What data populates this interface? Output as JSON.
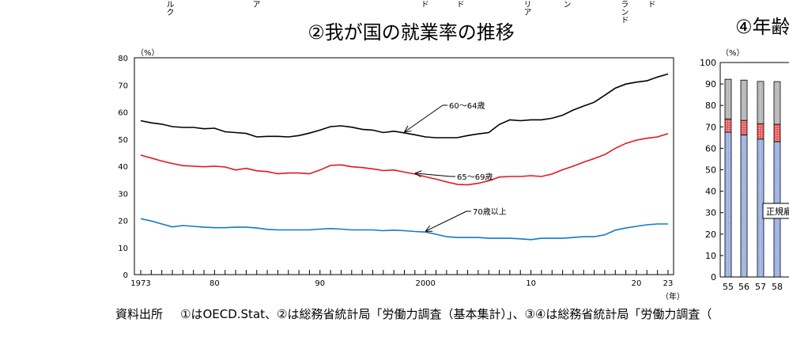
{
  "top_fragments": [
    {
      "text": "ルク"
    },
    {
      "text": "ア"
    },
    {
      "text": "ド"
    },
    {
      "text": "ド"
    },
    {
      "text": "リア"
    },
    {
      "text": "ン"
    },
    {
      "text": "ランド"
    },
    {
      "text": "ド"
    }
  ],
  "source": {
    "label": "資料出所",
    "text": "①はOECD.Stat、②は総務省統計局「労働力調査（基本集計）」、③④は総務省統計局「労働力調査（"
  },
  "chart_data": [
    {
      "type": "line",
      "title": "②我が国の就業率の推移",
      "ylabel": "（%）",
      "xlabel": "（年）",
      "ylim": [
        0,
        80
      ],
      "yticks": [
        "0",
        "10",
        "20",
        "30",
        "40",
        "50",
        "60",
        "70",
        "80"
      ],
      "xlim": [
        1973,
        2023
      ],
      "xtick_labels": [
        {
          "year": 1973,
          "label": "1973"
        },
        {
          "year": 1980,
          "label": "80"
        },
        {
          "year": 1990,
          "label": "90"
        },
        {
          "year": 2000,
          "label": "2000"
        },
        {
          "year": 2010,
          "label": "10"
        },
        {
          "year": 2020,
          "label": "20"
        },
        {
          "year": 2023,
          "label": "23"
        }
      ],
      "grid": false,
      "x_start": 1973,
      "series": [
        {
          "name": "60～64歳",
          "color": "#000000",
          "label_year": 1998,
          "values": [
            56.8,
            56,
            55.5,
            54.6,
            54.3,
            54.3,
            53.8,
            54,
            52.7,
            52.4,
            52.1,
            50.8,
            51,
            51,
            50.8,
            51.3,
            52.2,
            53.3,
            54.6,
            54.9,
            54.4,
            53.6,
            53.3,
            52.4,
            52.9,
            52.3,
            51.6,
            50.8,
            50.5,
            50.5,
            50.5,
            51.3,
            51.9,
            52.4,
            55.4,
            57.1,
            56.8,
            57.1,
            57.1,
            57.7,
            58.8,
            60.7,
            62.2,
            63.6,
            66.2,
            68.8,
            70.3,
            71.0,
            71.5,
            72.9,
            74.0
          ]
        },
        {
          "name": "65～69歳",
          "color": "#e8141e",
          "label_year": 1999,
          "values": [
            44.1,
            43,
            41.9,
            41,
            40.2,
            40,
            39.8,
            40,
            39.7,
            38.6,
            39.2,
            38.3,
            38,
            37.2,
            37.5,
            37.5,
            37.2,
            38.6,
            40.3,
            40.5,
            39.8,
            39.5,
            39,
            38.4,
            38.6,
            37.8,
            37.1,
            36.1,
            35.2,
            34.2,
            33.3,
            33.1,
            33.7,
            34.6,
            36.0,
            36.2,
            36.2,
            36.5,
            36.2,
            37.1,
            38.7,
            40.0,
            41.5,
            42.8,
            44.3,
            46.6,
            48.4,
            49.6,
            50.3,
            50.8,
            52.0
          ]
        },
        {
          "name": "70歳以上",
          "color": "#1478c8",
          "label_year": 2000,
          "values": [
            20.6,
            19.8,
            18.7,
            17.6,
            18.1,
            17.8,
            17.5,
            17.3,
            17.3,
            17.5,
            17.5,
            17.2,
            16.7,
            16.5,
            16.5,
            16.5,
            16.5,
            16.8,
            17,
            16.8,
            16.5,
            16.5,
            16.5,
            16.2,
            16.4,
            16.2,
            15.9,
            15.7,
            14.9,
            14.0,
            13.7,
            13.7,
            13.7,
            13.4,
            13.4,
            13.4,
            13.2,
            12.9,
            13.4,
            13.4,
            13.4,
            13.7,
            14.0,
            14.0,
            14.7,
            16.4,
            17.2,
            17.8,
            18.4,
            18.7,
            18.7
          ]
        }
      ]
    },
    {
      "type": "bar",
      "stacked": true,
      "title": "④年齢",
      "ylabel": "（%）",
      "ylim": [
        0,
        100
      ],
      "yticks": [
        "0",
        "10",
        "20",
        "30",
        "40",
        "50",
        "60",
        "70",
        "80",
        "90",
        "100"
      ],
      "categories": [
        "55",
        "56",
        "57",
        "58"
      ],
      "annotation": "正規雇",
      "series": [
        {
          "color": "#a8bce8",
          "values": [
            67.5,
            66.3,
            64.3,
            63.1
          ]
        },
        {
          "color": "#f06060",
          "values": [
            6.2,
            6.7,
            7.2,
            8.1
          ]
        },
        {
          "color": "#c0c0c0",
          "values": [
            18.5,
            18.8,
            19.7,
            19.9
          ]
        }
      ]
    }
  ]
}
